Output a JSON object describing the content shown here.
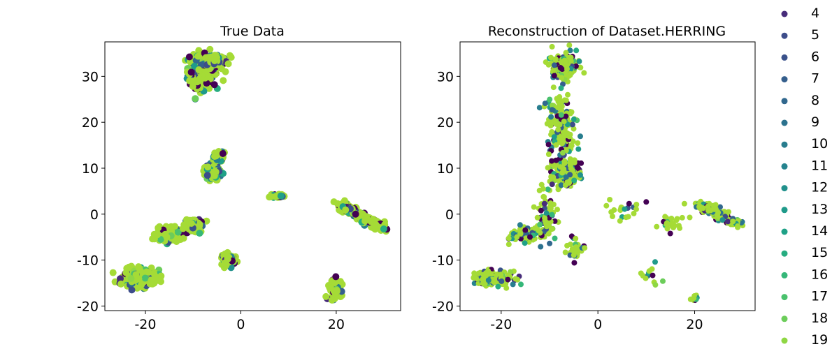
{
  "chart_data": [
    {
      "type": "scatter",
      "title": "True Data",
      "xlabel": "",
      "ylabel": "",
      "xlim": [
        -28.5,
        33.5
      ],
      "ylim": [
        -21,
        37.5
      ],
      "xticks": [
        -20,
        0,
        20
      ],
      "yticks": [
        -20,
        -10,
        0,
        10,
        20,
        30
      ],
      "grid": false,
      "clusters": [
        {
          "x": -8,
          "y": 31,
          "rx": 3.0,
          "ry": 3.5,
          "n": 260
        },
        {
          "x": -5,
          "y": 33,
          "rx": 2.0,
          "ry": 1.5,
          "n": 120
        },
        {
          "x": -6,
          "y": 9,
          "rx": 1.8,
          "ry": 1.5,
          "n": 90
        },
        {
          "x": -4.5,
          "y": 12.5,
          "rx": 1.2,
          "ry": 1.0,
          "n": 60
        },
        {
          "x": 8,
          "y": 4,
          "rx": 1.2,
          "ry": 0.5,
          "n": 30
        },
        {
          "x": -15,
          "y": -4.5,
          "rx": 2.8,
          "ry": 1.6,
          "n": 140
        },
        {
          "x": -10,
          "y": -2.5,
          "rx": 1.6,
          "ry": 1.6,
          "n": 80
        },
        {
          "x": -2.5,
          "y": -9.8,
          "rx": 1.4,
          "ry": 1.3,
          "n": 60
        },
        {
          "x": -20.5,
          "y": -13.8,
          "rx": 4.0,
          "ry": 1.8,
          "n": 230
        },
        {
          "x": 19.8,
          "y": -16.5,
          "rx": 1.3,
          "ry": 2.5,
          "n": 80
        },
        {
          "x": 25.5,
          "y": -0.5,
          "rx": 1.2,
          "ry": 1.2,
          "n": 260,
          "line_to": [
            29.8,
            -3.0
          ],
          "line_from": [
            21.0,
            2.0
          ]
        }
      ]
    },
    {
      "type": "scatter",
      "title": "Reconstruction of Dataset.HERRING",
      "xlabel": "",
      "ylabel": "",
      "xlim": [
        -28.5,
        32.5
      ],
      "ylim": [
        -21,
        37.5
      ],
      "xticks": [
        -20,
        0,
        20
      ],
      "yticks": [
        -20,
        -10,
        0,
        10,
        20,
        30
      ],
      "grid": false,
      "clusters": [
        {
          "x": -7,
          "y": 32,
          "rx": 2.5,
          "ry": 2.5,
          "n": 220
        },
        {
          "x": -7,
          "y": 9,
          "rx": 3.0,
          "ry": 3.0,
          "n": 200
        },
        {
          "x": -7.5,
          "y": 19,
          "rx": 3.0,
          "ry": 7.0,
          "n": 180
        },
        {
          "x": -10.5,
          "y": 0,
          "rx": 2.0,
          "ry": 6.0,
          "n": 80
        },
        {
          "x": -15,
          "y": -4.5,
          "rx": 3.0,
          "ry": 1.5,
          "n": 90
        },
        {
          "x": -21.5,
          "y": -14,
          "rx": 3.5,
          "ry": 1.5,
          "n": 170
        },
        {
          "x": -5,
          "y": -8,
          "rx": 2.0,
          "ry": 2.5,
          "n": 30
        },
        {
          "x": 5,
          "y": 0,
          "rx": 4.0,
          "ry": 2.5,
          "n": 20
        },
        {
          "x": 15.5,
          "y": -2,
          "rx": 2.5,
          "ry": 2.0,
          "n": 25
        },
        {
          "x": 12,
          "y": -14,
          "rx": 2.5,
          "ry": 3.0,
          "n": 12
        },
        {
          "x": 20,
          "y": -18.3,
          "rx": 0.6,
          "ry": 0.5,
          "n": 15
        },
        {
          "x": 25,
          "y": 0,
          "rx": 1.0,
          "ry": 1.0,
          "n": 220,
          "line_from": [
            21.0,
            2.2
          ],
          "line_to": [
            29.0,
            -2.3
          ]
        }
      ]
    }
  ],
  "legend": {
    "placement": "right",
    "labels": [
      "4",
      "5",
      "6",
      "7",
      "8",
      "9",
      "10",
      "11",
      "12",
      "13",
      "14",
      "15",
      "16",
      "17",
      "18",
      "19"
    ],
    "colors": [
      "#472c7a",
      "#3d4d8a",
      "#3b528b",
      "#355f8d",
      "#31688e",
      "#2c728e",
      "#287d8e",
      "#25838e",
      "#21918c",
      "#1f9a8a",
      "#1fa187",
      "#27ad81",
      "#35b779",
      "#4ac16d",
      "#6ccd5a",
      "#8fd744"
    ]
  },
  "palette": {
    "dominant": "#a5db36",
    "dark": "#440154",
    "mid": "#2a788e"
  }
}
